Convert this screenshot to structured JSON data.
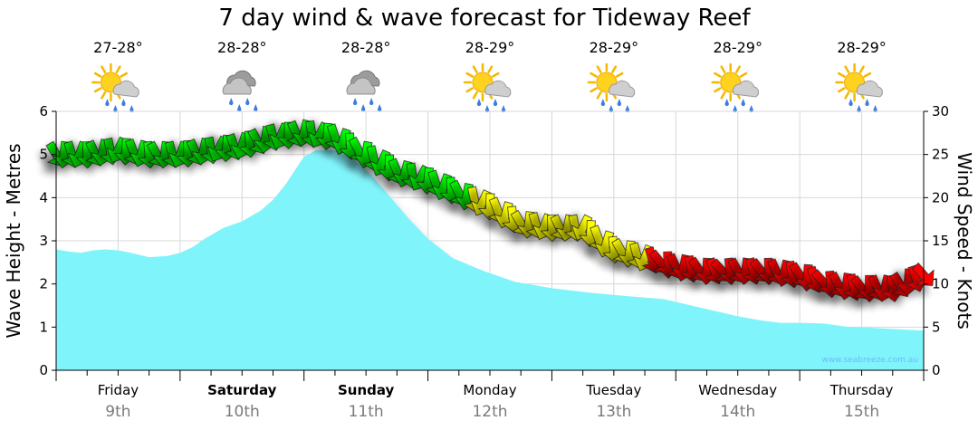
{
  "colors": {
    "wave_fill": "#80f4fb",
    "wave_shadow": "#d4d4d4",
    "grid": "#d8d8d8",
    "wind_light": "#00ff00",
    "wind_moderate": "#ffff00",
    "wind_strong": "#ff0000",
    "arrow_outline": "#222222"
  },
  "forecast": {
    "days": [
      {
        "name": "Friday",
        "date": "9th",
        "temp": "27-28°",
        "icon": "sun-cloud-rain-icon",
        "bold": false
      },
      {
        "name": "Saturday",
        "date": "10th",
        "temp": "28-28°",
        "icon": "cloud-rain-icon",
        "bold": true
      },
      {
        "name": "Sunday",
        "date": "11th",
        "temp": "28-28°",
        "icon": "cloud-rain-icon",
        "bold": true
      },
      {
        "name": "Monday",
        "date": "12th",
        "temp": "28-29°",
        "icon": "sun-cloud-rain-icon",
        "bold": false
      },
      {
        "name": "Tuesday",
        "date": "13th",
        "temp": "28-29°",
        "icon": "sun-cloud-rain-icon",
        "bold": false
      },
      {
        "name": "Wednesday",
        "date": "14th",
        "temp": "28-29°",
        "icon": "sun-cloud-rain-icon",
        "bold": false
      },
      {
        "name": "Thursday",
        "date": "15th",
        "temp": "28-29°",
        "icon": "sun-cloud-rain-icon",
        "bold": false
      }
    ],
    "watermark": "www.seabreeze.com.au"
  },
  "chart_data": {
    "type": "area",
    "title": "7 day wind & wave forecast for Tideway Reef",
    "ylabel": "Wave Height - Metres",
    "y2label": "Wind Speed - Knots",
    "ylim": [
      0,
      6
    ],
    "y2lim": [
      0,
      30
    ],
    "yticks": [
      "0",
      "1",
      "2",
      "3",
      "4",
      "5",
      "6"
    ],
    "y2ticks": [
      "0",
      "5",
      "10",
      "15",
      "20",
      "25",
      "30"
    ],
    "grid": true,
    "x_units": "days from start of Friday 9th",
    "xlim": [
      0,
      7
    ],
    "series": [
      {
        "name": "Wave Height",
        "kind": "area",
        "axis": "left",
        "x": [
          0,
          0.1,
          0.2,
          0.3,
          0.4,
          0.5,
          0.6,
          0.75,
          0.9,
          1.0,
          1.1,
          1.2,
          1.35,
          1.5,
          1.65,
          1.75,
          1.85,
          2.0,
          2.1,
          2.25,
          2.4,
          2.55,
          2.7,
          2.85,
          3.0,
          3.2,
          3.45,
          3.7,
          4.0,
          4.3,
          4.6,
          4.9,
          5.2,
          5.5,
          5.7,
          5.85,
          6.0,
          6.2,
          6.4,
          6.6,
          6.8,
          7.0
        ],
        "values": [
          2.8,
          2.75,
          2.72,
          2.78,
          2.8,
          2.78,
          2.72,
          2.62,
          2.65,
          2.72,
          2.85,
          3.05,
          3.3,
          3.45,
          3.7,
          3.95,
          4.3,
          4.95,
          5.1,
          5.1,
          4.9,
          4.5,
          4.0,
          3.5,
          3.05,
          2.6,
          2.3,
          2.05,
          1.9,
          1.8,
          1.72,
          1.65,
          1.45,
          1.25,
          1.15,
          1.1,
          1.1,
          1.08,
          1.0,
          0.98,
          0.95,
          0.92
        ]
      },
      {
        "name": "Wind Speed",
        "kind": "arrows",
        "axis": "right",
        "x": [
          0.0,
          0.25,
          0.5,
          0.75,
          1.0,
          1.25,
          1.5,
          1.75,
          2.0,
          2.25,
          2.5,
          2.75,
          3.0,
          3.25,
          3.5,
          3.75,
          4.0,
          4.25,
          4.5,
          4.75,
          5.0,
          5.25,
          5.5,
          5.75,
          6.0,
          6.25,
          6.5,
          6.75,
          7.0
        ],
        "values": [
          25,
          25,
          25.5,
          25,
          25,
          25.5,
          26,
          27,
          27.5,
          27,
          25,
          23,
          22,
          20.5,
          19,
          17,
          16.5,
          16.5,
          14,
          13,
          12,
          11.5,
          11.5,
          11.5,
          11,
          10,
          9.5,
          9.5,
          11
        ]
      }
    ]
  }
}
